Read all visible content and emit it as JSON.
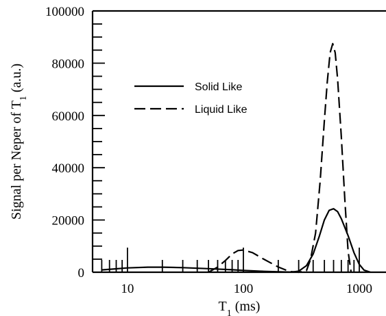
{
  "chart_data": {
    "type": "line",
    "xscale": "log",
    "xlim": [
      5,
      1700
    ],
    "ylim": [
      0,
      100000
    ],
    "x_ticks": [
      10,
      100,
      1000
    ],
    "y_ticks": [
      0,
      20000,
      40000,
      60000,
      80000,
      100000
    ],
    "x_tick_labels": [
      "10",
      "100",
      "1000"
    ],
    "y_tick_labels": [
      "0",
      "20000",
      "40000",
      "60000",
      "80000",
      "100000"
    ],
    "xlabel": {
      "main": "T",
      "sub": "1",
      "rest": " (ms)"
    },
    "ylabel": {
      "main": "Signal per Neper of T",
      "sub": "1",
      "rest": " (a.u.)"
    },
    "legend_position": "upper-left",
    "series": [
      {
        "name": "Solid Like",
        "dash": "solid",
        "points": [
          [
            6,
            900
          ],
          [
            8,
            1300
          ],
          [
            10,
            1650
          ],
          [
            15,
            1950
          ],
          [
            20,
            1950
          ],
          [
            30,
            1750
          ],
          [
            50,
            1350
          ],
          [
            80,
            950
          ],
          [
            100,
            700
          ],
          [
            150,
            350
          ],
          [
            200,
            150
          ],
          [
            260,
            50
          ],
          [
            300,
            400
          ],
          [
            350,
            2500
          ],
          [
            400,
            7000
          ],
          [
            450,
            13500
          ],
          [
            500,
            20000
          ],
          [
            550,
            23700
          ],
          [
            600,
            24300
          ],
          [
            650,
            23200
          ],
          [
            700,
            20500
          ],
          [
            800,
            14000
          ],
          [
            900,
            7500
          ],
          [
            1000,
            3000
          ],
          [
            1100,
            800
          ],
          [
            1250,
            0
          ]
        ]
      },
      {
        "name": "Liquid Like",
        "dash": "dashed",
        "points": [
          [
            50,
            0
          ],
          [
            60,
            2000
          ],
          [
            70,
            4500
          ],
          [
            80,
            7000
          ],
          [
            90,
            8300
          ],
          [
            100,
            8500
          ],
          [
            120,
            7500
          ],
          [
            150,
            5000
          ],
          [
            200,
            2000
          ],
          [
            250,
            300
          ],
          [
            300,
            0
          ],
          [
            350,
            600
          ],
          [
            380,
            5000
          ],
          [
            420,
            15000
          ],
          [
            460,
            35000
          ],
          [
            500,
            58000
          ],
          [
            530,
            73000
          ],
          [
            560,
            84000
          ],
          [
            590,
            87500
          ],
          [
            620,
            84000
          ],
          [
            650,
            74000
          ],
          [
            700,
            52000
          ],
          [
            750,
            28000
          ],
          [
            800,
            8000
          ],
          [
            850,
            0
          ]
        ]
      }
    ]
  },
  "legend": {
    "items": [
      {
        "label": "Solid Like",
        "dash": "solid"
      },
      {
        "label": "Liquid Like",
        "dash": "dashed"
      }
    ]
  }
}
